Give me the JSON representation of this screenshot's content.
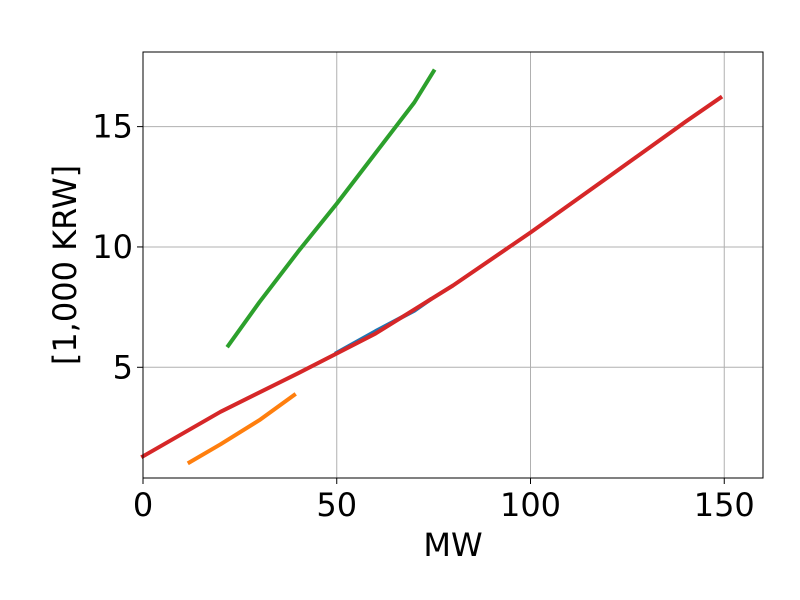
{
  "chart_data": {
    "type": "line",
    "title": "",
    "xlabel": "MW",
    "ylabel": "[1,000 KRW]",
    "xlim": [
      0,
      160
    ],
    "ylim": [
      0.4,
      18.1
    ],
    "xticks": [
      0,
      50,
      100,
      150
    ],
    "yticks": [
      5,
      10,
      15
    ],
    "grid": true,
    "series": [
      {
        "color": "#1f77b4",
        "x": [
          50,
          60,
          70,
          74
        ],
        "y": [
          5.6,
          6.5,
          7.35,
          7.8
        ]
      },
      {
        "color": "#ff7f0e",
        "x": [
          12,
          20,
          30,
          39
        ],
        "y": [
          1.05,
          1.8,
          2.8,
          3.85
        ]
      },
      {
        "color": "#2ca02c",
        "x": [
          22,
          30,
          40,
          50,
          60,
          70,
          75
        ],
        "y": [
          5.9,
          7.7,
          9.8,
          11.8,
          13.9,
          16.0,
          17.3
        ]
      },
      {
        "color": "#d62728",
        "x": [
          0,
          20,
          40,
          60,
          80,
          100,
          120,
          140,
          149
        ],
        "y": [
          1.3,
          3.15,
          4.75,
          6.4,
          8.4,
          10.6,
          12.9,
          15.2,
          16.2
        ]
      }
    ]
  }
}
